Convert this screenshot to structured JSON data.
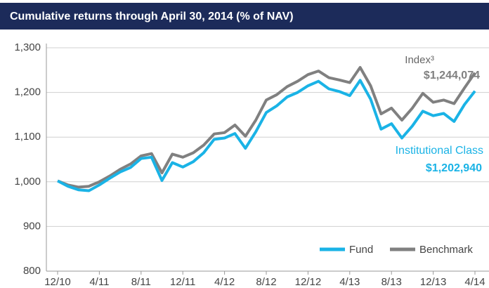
{
  "chart_data": {
    "type": "line",
    "title": "Cumulative returns through April 30, 2014 (% of NAV)",
    "categories": [
      "12/10",
      null,
      null,
      null,
      "4/11",
      null,
      null,
      null,
      "8/11",
      null,
      null,
      null,
      "12/11",
      null,
      null,
      null,
      "4/12",
      null,
      null,
      null,
      "8/12",
      null,
      null,
      null,
      "12/12",
      null,
      null,
      null,
      "4/13",
      null,
      null,
      null,
      "8/13",
      null,
      null,
      null,
      "12/13",
      null,
      null,
      null,
      "4/14"
    ],
    "series": [
      {
        "name": "Fund",
        "color": "#1ab3e6",
        "values": [
          1002,
          990,
          982,
          980,
          993,
          1008,
          1022,
          1032,
          1052,
          1055,
          1003,
          1043,
          1033,
          1045,
          1065,
          1095,
          1098,
          1108,
          1075,
          1112,
          1155,
          1170,
          1190,
          1200,
          1215,
          1225,
          1208,
          1202,
          1193,
          1227,
          1185,
          1118,
          1130,
          1098,
          1125,
          1158,
          1148,
          1153,
          1135,
          1173,
          1202.94
        ]
      },
      {
        "name": "Benchmark",
        "color": "#808080",
        "values": [
          1002,
          993,
          988,
          990,
          1000,
          1013,
          1028,
          1040,
          1058,
          1063,
          1020,
          1062,
          1055,
          1065,
          1082,
          1107,
          1110,
          1127,
          1102,
          1138,
          1183,
          1195,
          1213,
          1225,
          1240,
          1248,
          1233,
          1228,
          1222,
          1256,
          1215,
          1152,
          1165,
          1138,
          1165,
          1198,
          1178,
          1183,
          1175,
          1210,
          1244.074
        ]
      }
    ],
    "annotations": [
      {
        "text": "Index³",
        "color": "#666666"
      },
      {
        "text": "$1,244,074",
        "color": "#808080"
      },
      {
        "text": "Institutional Class",
        "color": "#1ab3e6"
      },
      {
        "text": "$1,202,940",
        "color": "#1ab3e6"
      }
    ],
    "ylim": [
      800,
      1300
    ],
    "yticks": [
      {
        "value": 800,
        "label": "800"
      },
      {
        "value": 900,
        "label": "900"
      },
      {
        "value": 1000,
        "label": "1,000"
      },
      {
        "value": 1100,
        "label": "1,100"
      },
      {
        "value": 1200,
        "label": "1,200"
      },
      {
        "value": 1300,
        "label": "1,300"
      }
    ],
    "grid": true,
    "legend": "lower right"
  }
}
